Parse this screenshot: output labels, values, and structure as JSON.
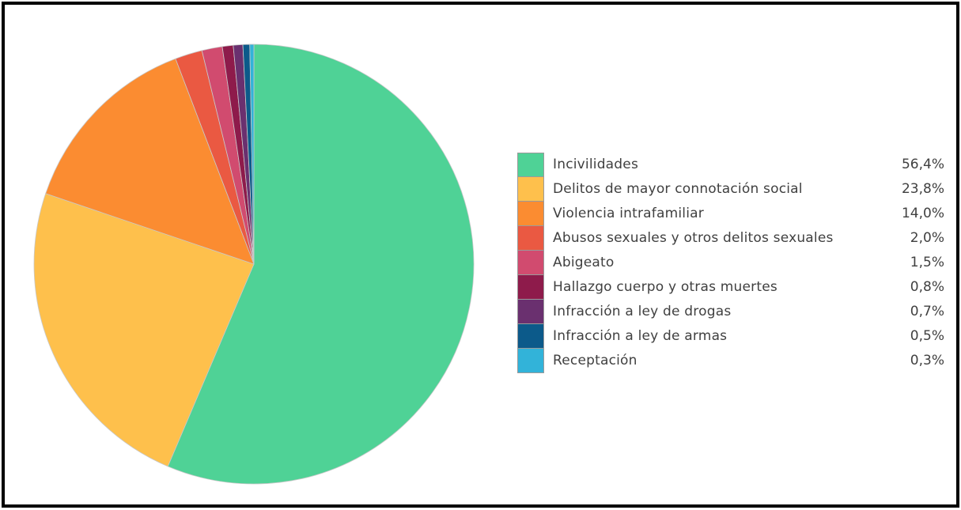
{
  "chart_data": {
    "type": "pie",
    "start_angle_deg": 0,
    "direction": "clockwise",
    "legend_position": "right",
    "slices": [
      {
        "label": "Incivilidades",
        "value": 56.4,
        "display": "56,4%",
        "color": "#4fd296"
      },
      {
        "label": "Delitos de mayor connotación social",
        "value": 23.8,
        "display": "23,8%",
        "color": "#fec04c"
      },
      {
        "label": "Violencia intrafamiliar",
        "value": 14.0,
        "display": "14,0%",
        "color": "#fb8c31"
      },
      {
        "label": "Abusos sexuales y otros delitos sexuales",
        "value": 2.0,
        "display": "2,0%",
        "color": "#ea5942"
      },
      {
        "label": "Abigeato",
        "value": 1.5,
        "display": "1,5%",
        "color": "#d14b6f"
      },
      {
        "label": "Hallazgo cuerpo y otras muertes",
        "value": 0.8,
        "display": "0,8%",
        "color": "#8e1b4b"
      },
      {
        "label": "Infracción a ley de drogas",
        "value": 0.7,
        "display": "0,7%",
        "color": "#6a306f"
      },
      {
        "label": "Infracción a ley de armas",
        "value": 0.5,
        "display": "0,5%",
        "color": "#0c5a8a"
      },
      {
        "label": "Receptación",
        "value": 0.3,
        "display": "0,3%",
        "color": "#32b3d9"
      }
    ]
  }
}
